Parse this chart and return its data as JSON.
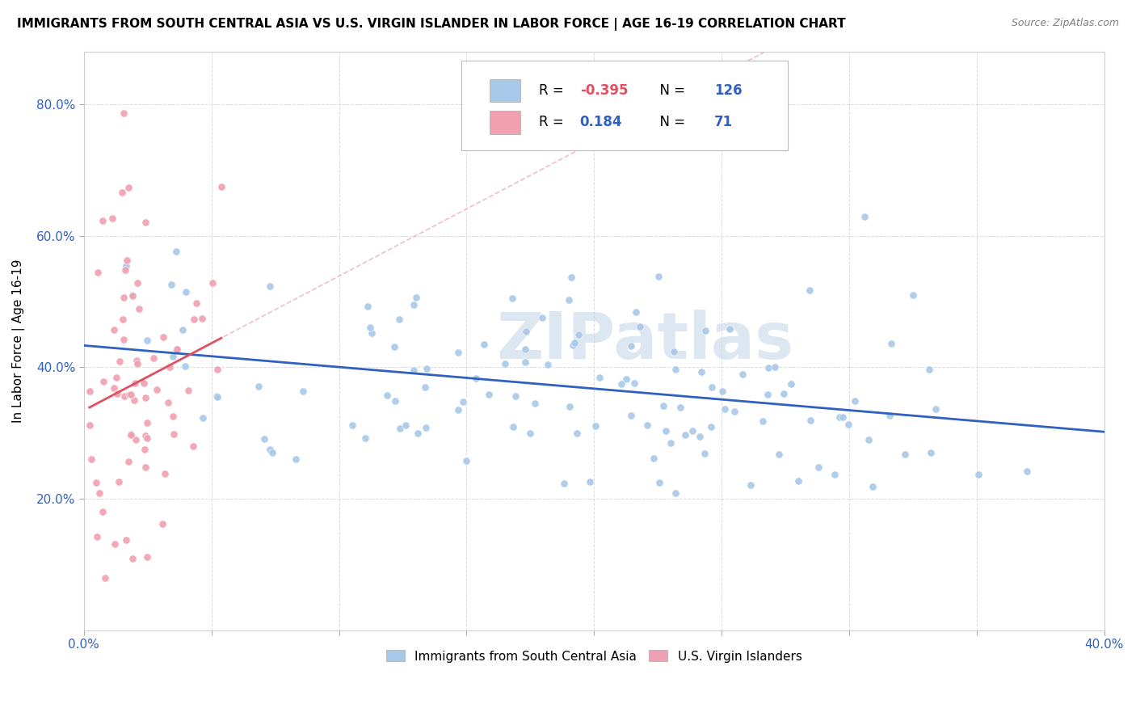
{
  "title": "IMMIGRANTS FROM SOUTH CENTRAL ASIA VS U.S. VIRGIN ISLANDER IN LABOR FORCE | AGE 16-19 CORRELATION CHART",
  "source": "Source: ZipAtlas.com",
  "ylabel": "In Labor Force | Age 16-19",
  "xlim": [
    0.0,
    0.4
  ],
  "ylim": [
    0.0,
    0.88
  ],
  "x_ticks": [
    0.0,
    0.05,
    0.1,
    0.15,
    0.2,
    0.25,
    0.3,
    0.35,
    0.4
  ],
  "y_ticks": [
    0.2,
    0.4,
    0.6,
    0.8
  ],
  "legend_blue_r": "-0.395",
  "legend_blue_n": "126",
  "legend_pink_r": "0.184",
  "legend_pink_n": "71",
  "watermark": "ZIPatlas",
  "blue_color": "#A8C8E8",
  "pink_color": "#F0A0B0",
  "blue_line_color": "#3060C0",
  "pink_line_color": "#E05060",
  "pink_dash_color": "#F0A0B0",
  "legend_r_color": "#E05060",
  "legend_n_color": "#3060C0",
  "label_color": "#3060C0",
  "grid_color": "#D8D8D8",
  "title_color": "#000000",
  "source_color": "#808080"
}
